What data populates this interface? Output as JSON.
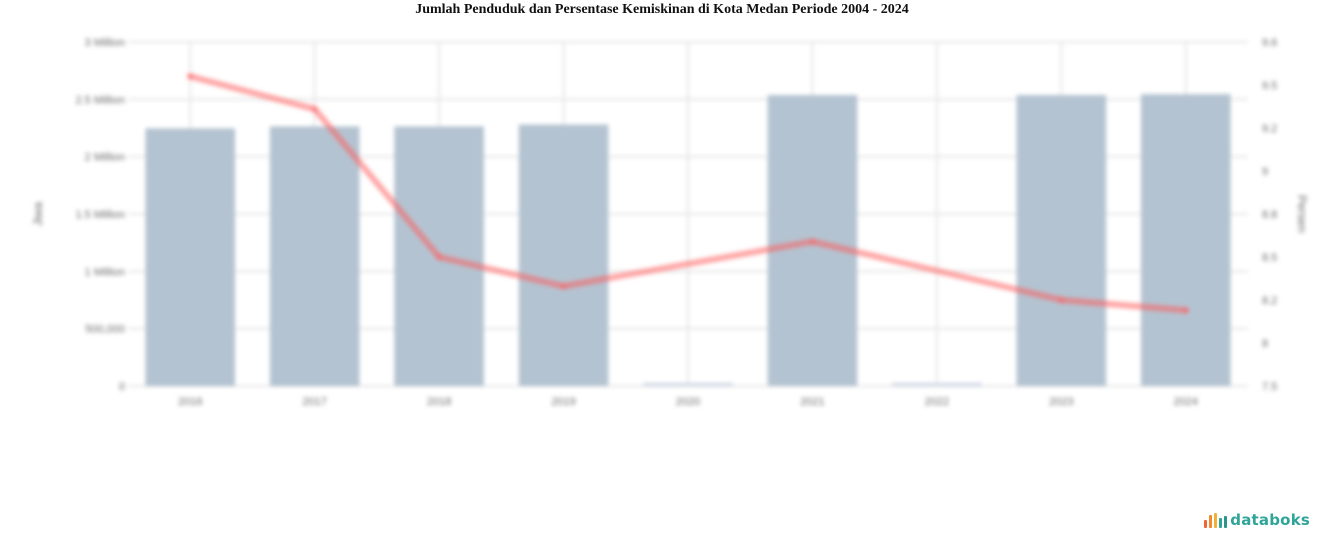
{
  "chart_data": {
    "type": "bar",
    "title": "Jumlah Penduduk dan Persentase Kemiskinan di Kota Medan Periode 2004 - 2024",
    "categories": [
      "2016",
      "2017",
      "2018",
      "2019",
      "2020",
      "2021",
      "2022",
      "2023",
      "2024"
    ],
    "series": [
      {
        "type": "bar",
        "axis": "left",
        "values": [
          2247000,
          2264000,
          2264000,
          2280000,
          null,
          2537000,
          null,
          2537000,
          2545000
        ]
      },
      {
        "type": "line",
        "axis": "right",
        "values": [
          9.3,
          9.11,
          8.25,
          8.08,
          null,
          8.34,
          null,
          8.0,
          7.94
        ]
      }
    ],
    "ylabel": "Jiwa",
    "y2label": "Persen",
    "ylim": [
      0,
      3000000
    ],
    "y2lim": [
      7.5,
      9.5
    ],
    "yticks": [
      "0",
      "500,000",
      "1 Million",
      "1.5 Million",
      "2 Million",
      "2.5 Million",
      "3 Million"
    ],
    "y2ticks": [
      "7.5",
      "8",
      "8.2",
      "8.5",
      "8.8",
      "9",
      "9.2",
      "9.5",
      "9.6"
    ],
    "grid": true,
    "legend": "none"
  },
  "branding": {
    "logo_text": "databoks"
  },
  "colors": {
    "bar": "#b4c3d1",
    "placeholder": "#cdd6e4",
    "line": "#ff5b5b",
    "grid": "#e6e6e6",
    "logo_text": "#2fa59a",
    "logo_marks": [
      "#f2643a",
      "#f28a2e",
      "#f2b134",
      "#2fa59a",
      "#27968c"
    ]
  }
}
